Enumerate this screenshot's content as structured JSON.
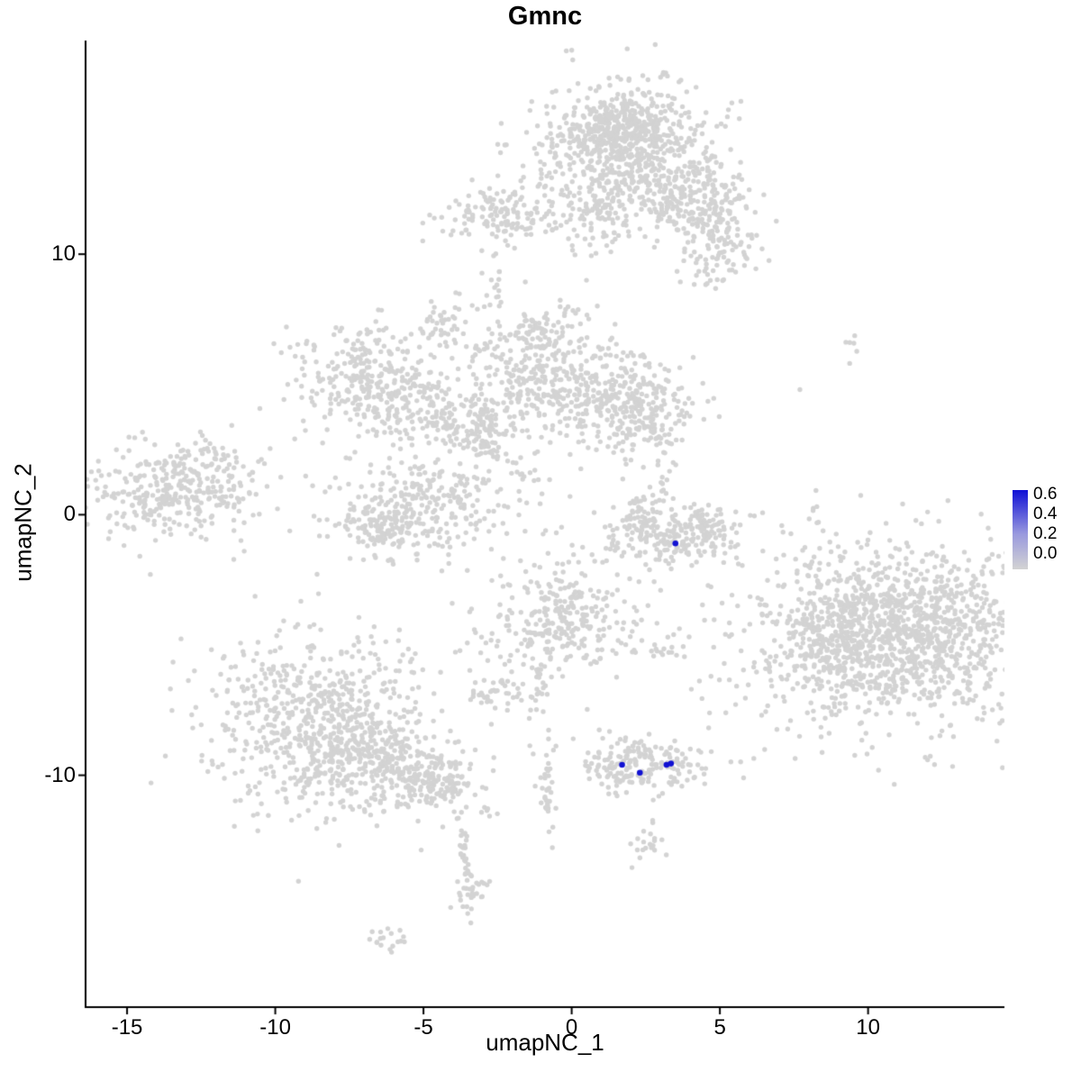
{
  "title": "Gmnc",
  "axes": {
    "x_label": "umapNC_1",
    "y_label": "umapNC_2"
  },
  "legend": {
    "labels": [
      "0.6",
      "0.4",
      "0.2",
      "0.0"
    ],
    "top_color": "#0F0FD6",
    "mid_color": "#9898DE",
    "bottom_color": "#D3D3D3"
  },
  "colors": {
    "point": "#D3D3D3",
    "highlight": "#1111D2",
    "axis": "#000000"
  },
  "chart_data": {
    "type": "scatter",
    "title": "Gmnc",
    "xlabel": "umapNC_1",
    "ylabel": "umapNC_2",
    "xlim": [
      -16.4,
      14.6
    ],
    "ylim": [
      -18.9,
      18.2
    ],
    "grid": false,
    "legend_position": "right",
    "colorbar": {
      "min": 0.0,
      "max": 0.6,
      "tick_labels": [
        "0.6",
        "0.4",
        "0.2",
        "0.0"
      ]
    },
    "x_ticks": [
      {
        "value": -15,
        "label": "-15"
      },
      {
        "value": -10,
        "label": "-10"
      },
      {
        "value": -5,
        "label": "-5"
      },
      {
        "value": 0,
        "label": "0"
      },
      {
        "value": 5,
        "label": "5"
      },
      {
        "value": 10,
        "label": "10"
      }
    ],
    "y_ticks": [
      {
        "value": 10,
        "label": "10"
      },
      {
        "value": 0,
        "label": "0"
      },
      {
        "value": -10,
        "label": "-10"
      }
    ],
    "clusters": [
      {
        "x": 1.8,
        "y": 14.1,
        "sx": 1.5,
        "sy": 1.3,
        "n": 550
      },
      {
        "x": 1.7,
        "y": 14.8,
        "sx": 0.9,
        "sy": 0.6,
        "n": 250
      },
      {
        "x": 3.9,
        "y": 12.2,
        "sx": 1.0,
        "sy": 0.9,
        "n": 240
      },
      {
        "x": 5.0,
        "y": 10.4,
        "sx": 0.6,
        "sy": 0.9,
        "n": 110,
        "angle": -25
      },
      {
        "x": 0.8,
        "y": 11.6,
        "sx": 0.6,
        "sy": 0.9,
        "n": 90
      },
      {
        "x": -2.1,
        "y": 11.5,
        "sx": 1.1,
        "sy": 0.55,
        "n": 150
      },
      {
        "x": -2.6,
        "y": 8.8,
        "sx": 0.25,
        "sy": 0.8,
        "n": 18
      },
      {
        "x": -4.4,
        "y": 7.3,
        "sx": 0.4,
        "sy": 0.5,
        "n": 45
      },
      {
        "x": -6.9,
        "y": 5.2,
        "sx": 1.3,
        "sy": 1.1,
        "n": 270
      },
      {
        "x": -5.0,
        "y": 4.0,
        "sx": 1.1,
        "sy": 0.65,
        "n": 150,
        "angle": -20
      },
      {
        "x": -3.2,
        "y": 3.4,
        "sx": 0.8,
        "sy": 0.6,
        "n": 80
      },
      {
        "x": -0.7,
        "y": 5.2,
        "sx": 1.5,
        "sy": 1.2,
        "n": 380
      },
      {
        "x": -1.1,
        "y": 6.9,
        "sx": 0.5,
        "sy": 0.5,
        "n": 60
      },
      {
        "x": 2.0,
        "y": 4.1,
        "sx": 1.1,
        "sy": 0.85,
        "n": 260
      },
      {
        "x": 3.0,
        "y": 2.6,
        "sx": 0.3,
        "sy": 0.6,
        "n": 14
      },
      {
        "x": -2.5,
        "y": 2.3,
        "sx": 0.9,
        "sy": 0.15,
        "n": 40,
        "angle": -40
      },
      {
        "x": -5.0,
        "y": 0.3,
        "sx": 1.7,
        "sy": 1.0,
        "n": 330
      },
      {
        "x": -6.5,
        "y": -0.5,
        "sx": 0.5,
        "sy": 0.5,
        "n": 60
      },
      {
        "x": -13.5,
        "y": 0.9,
        "sx": 1.5,
        "sy": 0.9,
        "n": 330
      },
      {
        "x": -11.8,
        "y": 1.7,
        "sx": 0.5,
        "sy": 0.8,
        "n": 35
      },
      {
        "x": 3.4,
        "y": -0.9,
        "sx": 1.3,
        "sy": 0.5,
        "n": 210
      },
      {
        "x": 2.4,
        "y": -0.1,
        "sx": 0.4,
        "sy": 0.4,
        "n": 40
      },
      {
        "x": 4.4,
        "y": -0.2,
        "sx": 0.3,
        "sy": 0.4,
        "n": 35
      },
      {
        "x": 2.9,
        "y": 0.9,
        "sx": 0.4,
        "sy": 0.6,
        "n": 22
      },
      {
        "x": 10.8,
        "y": -4.8,
        "sx": 2.6,
        "sy": 1.9,
        "n": 1000
      },
      {
        "x": 11.2,
        "y": -4.4,
        "sx": 1.5,
        "sy": 1.1,
        "n": 400
      },
      {
        "x": 8.6,
        "y": -4.9,
        "sx": 0.7,
        "sy": 0.9,
        "n": 120
      },
      {
        "x": 8.2,
        "y": -0.8,
        "sx": 0.15,
        "sy": 1.2,
        "n": 14
      },
      {
        "x": 9.5,
        "y": 6.6,
        "sx": 0.3,
        "sy": 0.4,
        "n": 6
      },
      {
        "x": -0.3,
        "y": -4.1,
        "sx": 1.2,
        "sy": 1.1,
        "n": 300
      },
      {
        "x": -1.1,
        "y": -6.7,
        "sx": 0.25,
        "sy": 0.9,
        "n": 25
      },
      {
        "x": -2.6,
        "y": -6.8,
        "sx": 0.5,
        "sy": 0.4,
        "n": 40
      },
      {
        "x": 3.0,
        "y": -5.0,
        "sx": 0.5,
        "sy": 0.4,
        "n": 20
      },
      {
        "x": -8.5,
        "y": -7.9,
        "sx": 2.0,
        "sy": 1.7,
        "n": 650
      },
      {
        "x": -6.7,
        "y": -9.3,
        "sx": 1.2,
        "sy": 0.9,
        "n": 240
      },
      {
        "x": -4.7,
        "y": -10.2,
        "sx": 0.9,
        "sy": 0.55,
        "n": 150,
        "angle": -20
      },
      {
        "x": -3.7,
        "y": -12.6,
        "sx": 0.12,
        "sy": 1.5,
        "n": 45,
        "angle": 8
      },
      {
        "x": -3.5,
        "y": -14.5,
        "sx": 0.3,
        "sy": 0.4,
        "n": 25
      },
      {
        "x": -6.1,
        "y": -16.3,
        "sx": 0.35,
        "sy": 0.25,
        "n": 18
      },
      {
        "x": 2.4,
        "y": -9.6,
        "sx": 1.1,
        "sy": 0.55,
        "n": 200
      },
      {
        "x": 2.4,
        "y": -12.6,
        "sx": 0.4,
        "sy": 0.3,
        "n": 20
      },
      {
        "x": -0.8,
        "y": -10.4,
        "sx": 0.15,
        "sy": 1.1,
        "n": 35
      }
    ],
    "singles": [
      [
        5.2,
        -7.6
      ],
      [
        4.7,
        -6.2
      ],
      [
        6.9,
        -1.7
      ],
      [
        7.7,
        4.8
      ],
      [
        5.8,
        -10.1
      ],
      [
        2.0,
        2.1
      ],
      [
        -11.1,
        -6.6
      ],
      [
        0.5,
        9.0
      ],
      [
        3.0,
        -2.9
      ]
    ],
    "highlight_points": [
      {
        "x": 3.5,
        "y": -1.1,
        "value": 0.6
      },
      {
        "x": 1.7,
        "y": -9.6,
        "value": 0.6
      },
      {
        "x": 2.3,
        "y": -9.9,
        "value": 0.6
      },
      {
        "x": 3.2,
        "y": -9.6,
        "value": 0.6
      },
      {
        "x": 3.35,
        "y": -9.55,
        "value": 0.6
      }
    ]
  }
}
